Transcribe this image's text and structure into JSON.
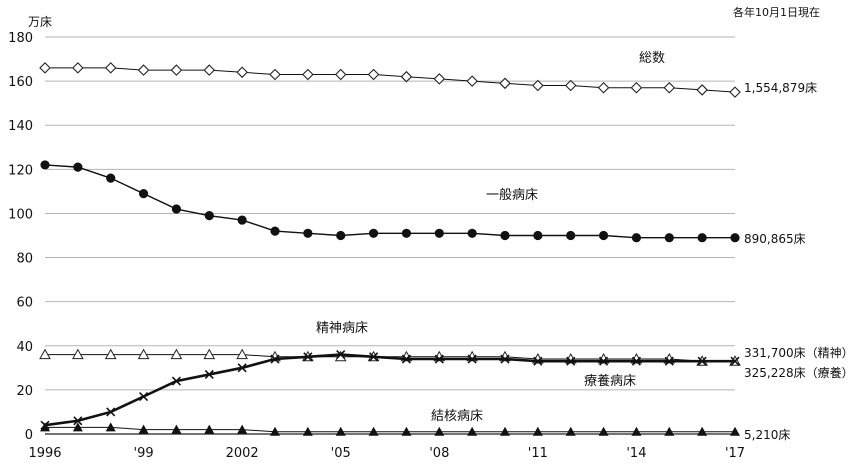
{
  "chart_data": {
    "type": "line",
    "unit_label": "万床",
    "date_note": "各年10月1日現在",
    "xlim": [
      1996,
      2017
    ],
    "ylim": [
      0,
      180
    ],
    "yticks": [
      0,
      20,
      40,
      60,
      80,
      100,
      120,
      140,
      160,
      180
    ],
    "xticks": [
      {
        "x": 1996,
        "label": "1996"
      },
      {
        "x": 1999,
        "label": "'99"
      },
      {
        "x": 2002,
        "label": "2002"
      },
      {
        "x": 2005,
        "label": "'05"
      },
      {
        "x": 2008,
        "label": "'08"
      },
      {
        "x": 2011,
        "label": "'11"
      },
      {
        "x": 2014,
        "label": "'14"
      },
      {
        "x": 2017,
        "label": "'17"
      }
    ],
    "grid": true,
    "series": [
      {
        "name": "総数",
        "marker": "diamond-open",
        "end_label": "1,554,879床",
        "x": [
          1996,
          1997,
          1998,
          1999,
          2000,
          2001,
          2002,
          2003,
          2004,
          2005,
          2006,
          2007,
          2008,
          2009,
          2010,
          2011,
          2012,
          2013,
          2014,
          2015,
          2016,
          2017
        ],
        "values": [
          166,
          166,
          166,
          165,
          165,
          165,
          164,
          163,
          163,
          163,
          163,
          162,
          161,
          160,
          159,
          158,
          158,
          157,
          157,
          157,
          156,
          155
        ]
      },
      {
        "name": "一般病床",
        "marker": "circle-filled",
        "end_label": "890,865床",
        "x": [
          1996,
          1997,
          1998,
          1999,
          2000,
          2001,
          2002,
          2003,
          2004,
          2005,
          2006,
          2007,
          2008,
          2009,
          2010,
          2011,
          2012,
          2013,
          2014,
          2015,
          2016,
          2017
        ],
        "values": [
          122,
          121,
          116,
          109,
          102,
          99,
          97,
          92,
          91,
          90,
          91,
          91,
          91,
          91,
          90,
          90,
          90,
          90,
          89,
          89,
          89,
          89
        ]
      },
      {
        "name": "精神病床",
        "marker": "triangle-open",
        "end_label": "331,700床（精神）",
        "x": [
          1996,
          1997,
          1998,
          1999,
          2000,
          2001,
          2002,
          2003,
          2004,
          2005,
          2006,
          2007,
          2008,
          2009,
          2010,
          2011,
          2012,
          2013,
          2014,
          2015,
          2016,
          2017
        ],
        "values": [
          36,
          36,
          36,
          36,
          36,
          36,
          36,
          35,
          35,
          35,
          35,
          35,
          35,
          35,
          35,
          34,
          34,
          34,
          34,
          34,
          33,
          33
        ]
      },
      {
        "name": "療養病床",
        "marker": "x",
        "end_label": "325,228床（療養）",
        "x": [
          1996,
          1997,
          1998,
          1999,
          2000,
          2001,
          2002,
          2003,
          2004,
          2005,
          2006,
          2007,
          2008,
          2009,
          2010,
          2011,
          2012,
          2013,
          2014,
          2015,
          2016,
          2017
        ],
        "values": [
          4,
          6,
          10,
          17,
          24,
          27,
          30,
          34,
          35,
          36,
          35,
          34,
          34,
          34,
          34,
          33,
          33,
          33,
          33,
          33,
          33,
          33
        ]
      },
      {
        "name": "結核病床",
        "marker": "triangle-filled",
        "end_label": "5,210床",
        "x": [
          1996,
          1997,
          1998,
          1999,
          2000,
          2001,
          2002,
          2003,
          2004,
          2005,
          2006,
          2007,
          2008,
          2009,
          2010,
          2011,
          2012,
          2013,
          2014,
          2015,
          2016,
          2017
        ],
        "values": [
          3,
          3,
          3,
          2,
          2,
          2,
          2,
          1,
          1,
          1,
          1,
          1,
          1,
          1,
          1,
          1,
          1,
          1,
          1,
          1,
          1,
          1
        ]
      }
    ]
  }
}
